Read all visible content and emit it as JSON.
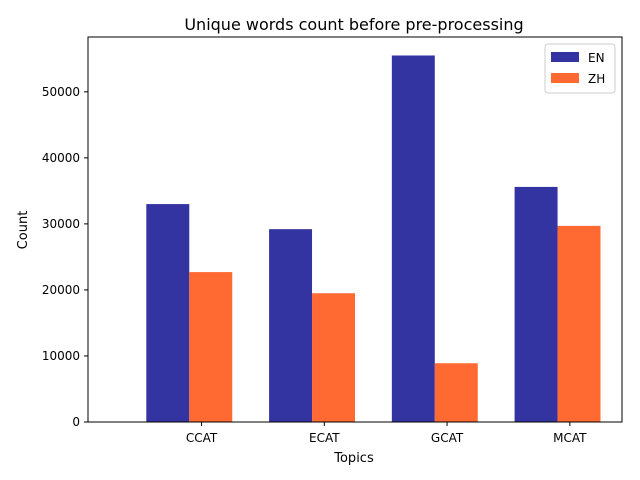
{
  "chart_data": {
    "type": "bar",
    "title": "Unique words count before pre-processing",
    "xlabel": "Topics",
    "ylabel": "Count",
    "categories": [
      "CCAT",
      "ECAT",
      "GCAT",
      "MCAT"
    ],
    "series": [
      {
        "name": "EN",
        "color": "#3333a1",
        "values": [
          33000,
          29200,
          55500,
          35600
        ]
      },
      {
        "name": "ZH",
        "color": "#ff6a33",
        "values": [
          22700,
          19500,
          8900,
          29700
        ]
      }
    ],
    "yticks": [
      "0",
      "10000",
      "20000",
      "30000",
      "40000",
      "50000"
    ],
    "ylim": [
      0,
      58300
    ],
    "grid": false,
    "legend_position": "top-right"
  }
}
